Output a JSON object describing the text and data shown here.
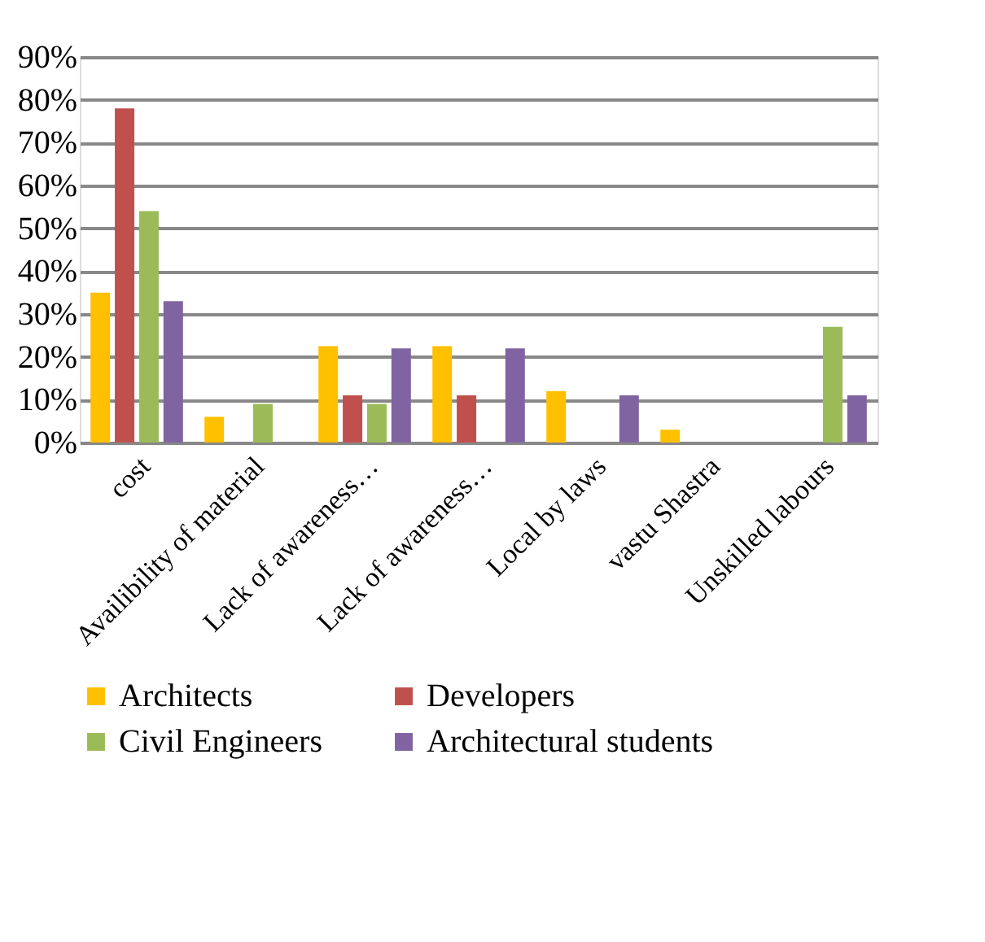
{
  "chart_data": {
    "type": "bar",
    "categories": [
      "cost",
      "Availibility of material",
      "Lack of awareness…",
      "Lack of awareness…",
      "Local by laws",
      "vastu Shastra",
      "Unskilled labours"
    ],
    "series": [
      {
        "name": "Architects",
        "color": "#ffc000",
        "values": [
          35,
          6,
          22.5,
          22.5,
          12,
          3,
          null
        ]
      },
      {
        "name": "Developers",
        "color": "#c0504d",
        "values": [
          78,
          null,
          11,
          11,
          null,
          null,
          null
        ]
      },
      {
        "name": "Civil Engineers",
        "color": "#9bbb59",
        "values": [
          54,
          9,
          9,
          null,
          null,
          null,
          27
        ]
      },
      {
        "name": "Architectural students",
        "color": "#8064a2",
        "values": [
          33,
          null,
          22,
          22,
          11,
          null,
          11
        ]
      }
    ],
    "ylim": [
      0,
      90
    ],
    "yticks": [
      {
        "value": 0,
        "label": "0%"
      },
      {
        "value": 10,
        "label": "10%"
      },
      {
        "value": 20,
        "label": "20%"
      },
      {
        "value": 30,
        "label": "30%"
      },
      {
        "value": 40,
        "label": "40%"
      },
      {
        "value": 50,
        "label": "50%"
      },
      {
        "value": 60,
        "label": "60%"
      },
      {
        "value": 70,
        "label": "70%"
      },
      {
        "value": 80,
        "label": "80%"
      },
      {
        "value": 90,
        "label": "90%"
      }
    ],
    "grid": "y",
    "legend": "bottom"
  }
}
